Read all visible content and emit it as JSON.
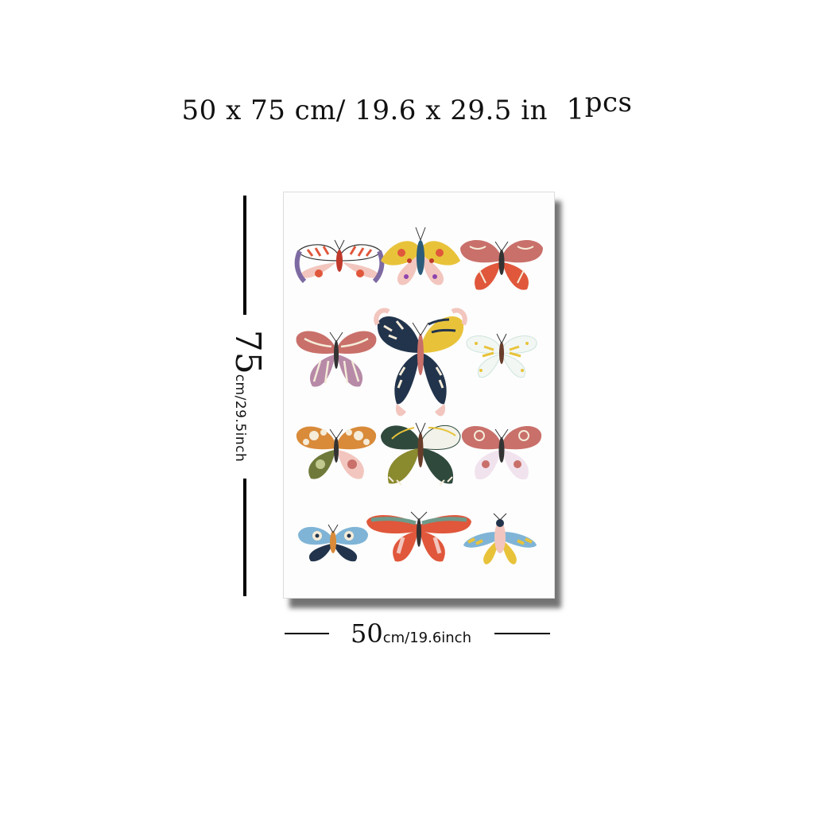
{
  "title": {
    "width_cm": "50",
    "x1": "x",
    "height_cm": "75",
    "cm_unit": "cm/",
    "width_in": "19.6",
    "x2": "x",
    "height_in": "29.5",
    "in_unit": "in",
    "qty": "1",
    "qty_unit": "pcs"
  },
  "height_dimension": {
    "value": "75",
    "unit_text": "cm/29.5inch"
  },
  "width_dimension": {
    "value": "50",
    "unit_text": "cm/19.6inch"
  },
  "artwork": {
    "subject": "butterflies",
    "palette": {
      "coral": "#e0573b",
      "rose": "#c9706a",
      "pink": "#f2c6be",
      "mustard": "#e8c33a",
      "navy": "#22344c",
      "olive": "#6f7a3a",
      "forest": "#2f4a3d",
      "mauve": "#b78aa7",
      "sky": "#7fb4d6",
      "cream": "#f5ecd9",
      "brown": "#6a3d2b"
    }
  }
}
